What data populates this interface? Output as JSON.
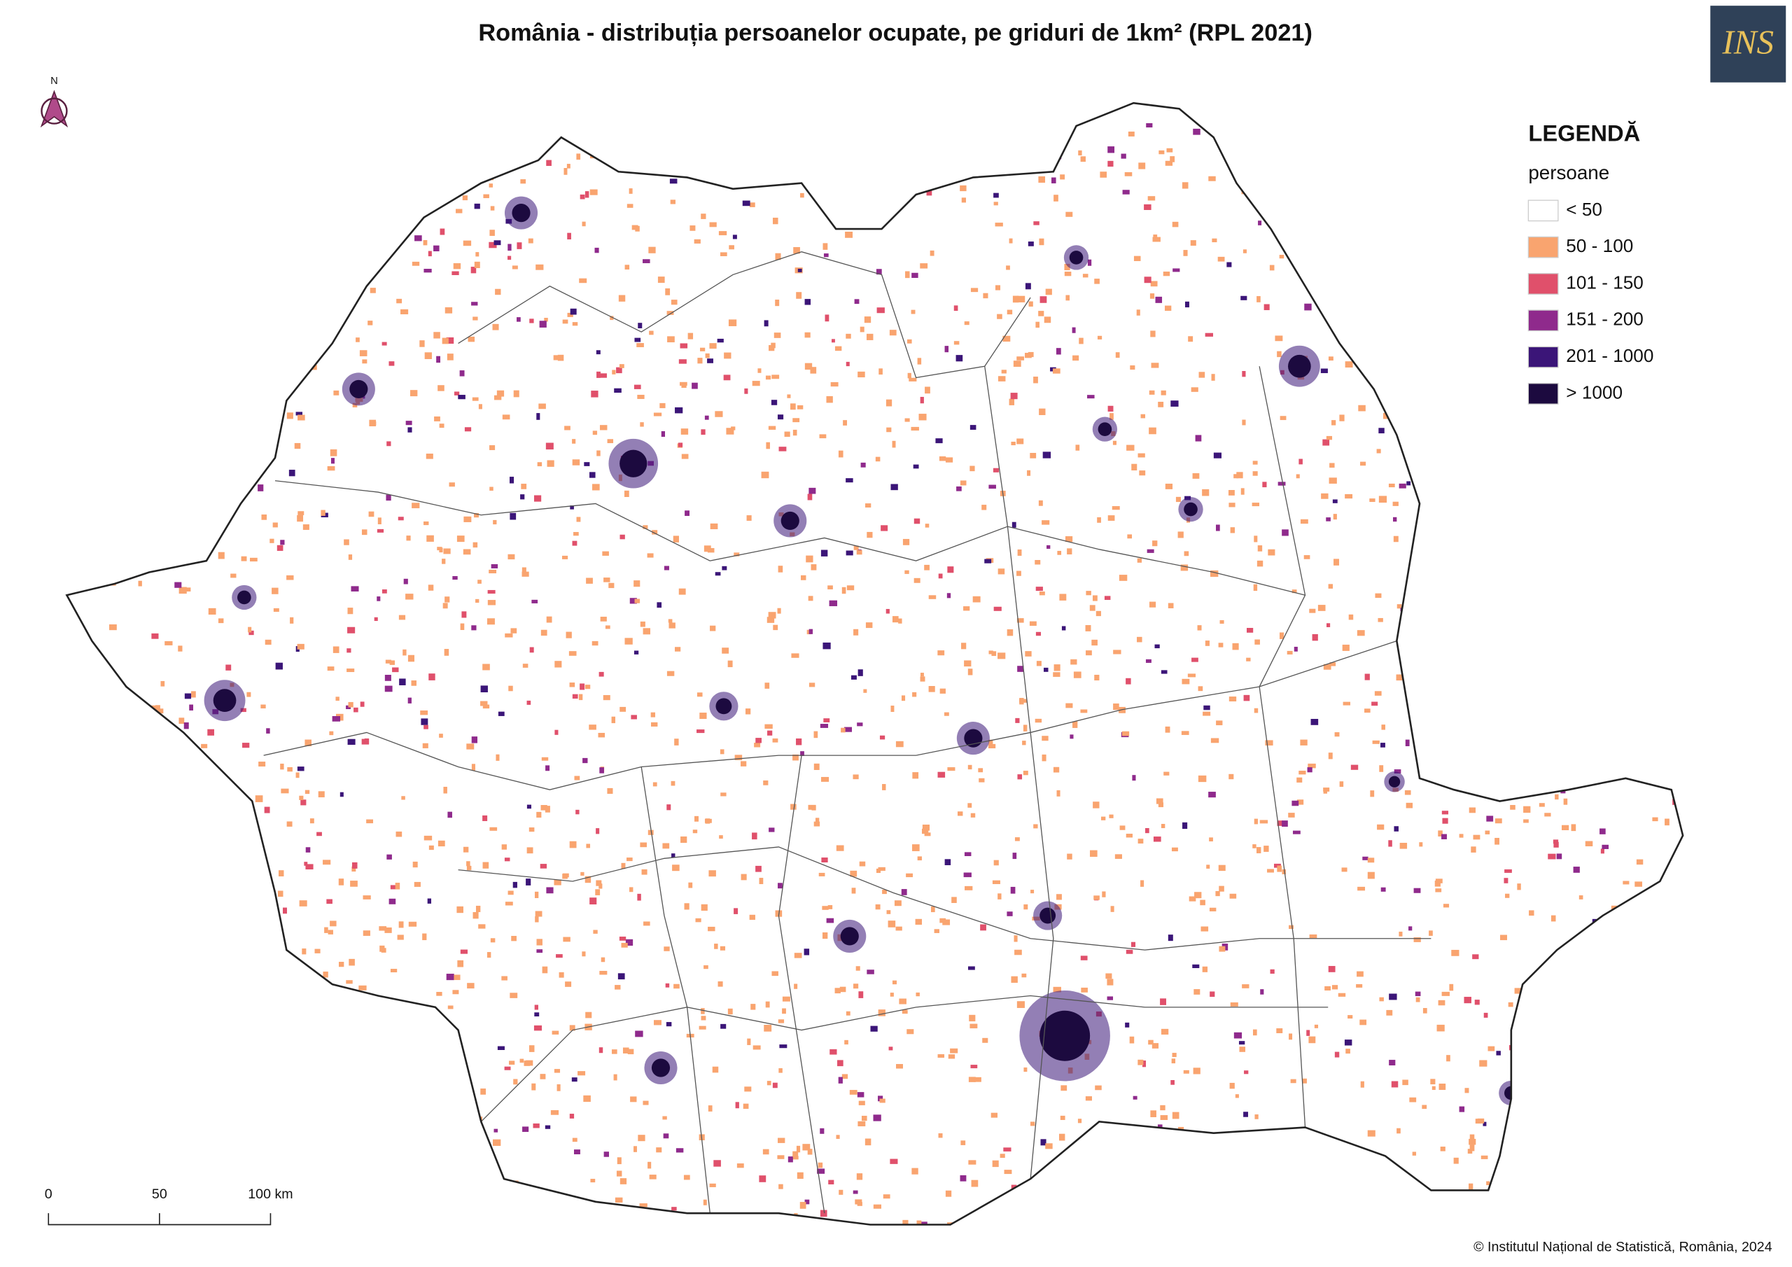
{
  "header": {
    "title": "România - distribuția persoanelor ocupate, pe griduri de 1km² (RPL 2021)"
  },
  "legend": {
    "title": "LEGENDĂ",
    "subtitle": "persoane",
    "items": [
      {
        "label": "< 50",
        "color": "#ffffff"
      },
      {
        "label": "50 - 100",
        "color": "#f9a46f"
      },
      {
        "label": "101 - 150",
        "color": "#e0506b"
      },
      {
        "label": "151 - 200",
        "color": "#8f2a8c"
      },
      {
        "label": "201 - 1000",
        "color": "#3b1578"
      },
      {
        "label": "> 1000",
        "color": "#1c0a3f"
      }
    ]
  },
  "north": "N",
  "logo": "INS",
  "scale_bar": {
    "labels": [
      "0",
      "50",
      "100 km"
    ]
  },
  "credit": "© Institutul Național de Statistică, România, 2024"
}
